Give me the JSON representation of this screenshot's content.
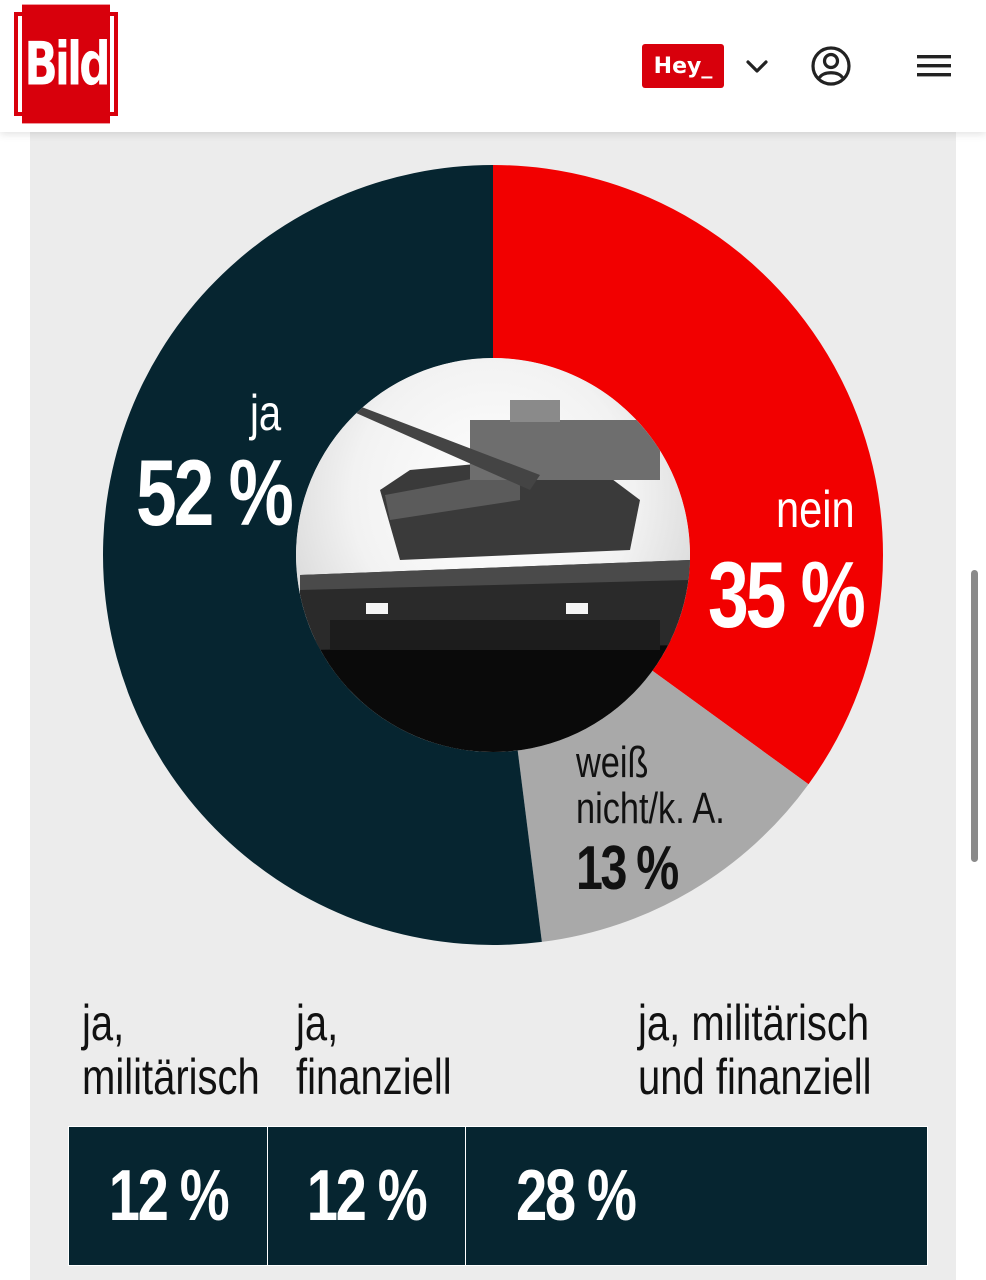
{
  "header": {
    "logo_text": "Bild",
    "hey_label": "Hey_"
  },
  "colors": {
    "ja": "#062530",
    "nein": "#f20000",
    "weiss_nicht": "#a9a9a9",
    "brand": "#d8000c"
  },
  "icons": [
    "chevron-down-icon",
    "user-account-icon",
    "hamburger-menu-icon",
    "tank-image"
  ],
  "chart_data": [
    {
      "type": "pie",
      "style": "donut",
      "slices": [
        {
          "label": "nein",
          "value": 35,
          "display": "35 %"
        },
        {
          "label": "weiß nicht/k. A.",
          "label_lines": [
            "weiß",
            "nicht/k. A."
          ],
          "value": 13,
          "display": "13 %"
        },
        {
          "label": "ja",
          "value": 52,
          "display": "52 %"
        }
      ],
      "order": "clockwise from top: nein, weiß nicht/k. A., ja"
    },
    {
      "type": "table",
      "categories": [
        {
          "lines": [
            "ja,",
            "militärisch"
          ],
          "value": 12,
          "display": "12 %"
        },
        {
          "lines": [
            "ja,",
            "finanziell"
          ],
          "value": 12,
          "display": "12 %"
        },
        {
          "lines": [
            "ja, militärisch",
            "und finanziell"
          ],
          "value": 28,
          "display": "28 %"
        }
      ]
    }
  ]
}
